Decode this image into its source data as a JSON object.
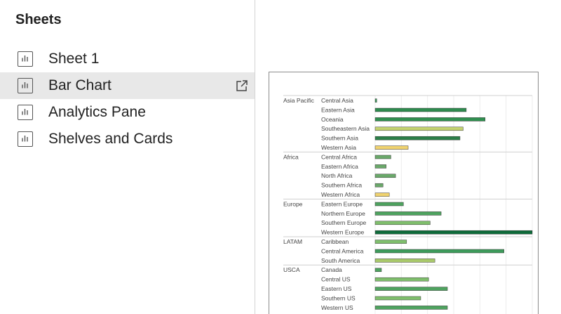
{
  "sidebar": {
    "title": "Sheets",
    "items": [
      {
        "label": "Sheet 1"
      },
      {
        "label": "Bar Chart"
      },
      {
        "label": "Analytics Pane"
      },
      {
        "label": "Shelves and Cards"
      }
    ]
  },
  "chart_data": {
    "type": "bar",
    "orientation": "horizontal",
    "grid": true,
    "colors": {
      "dark_green": "#0f6b3a",
      "green": "#3d9b5b",
      "light_green": "#7fbf6c",
      "yellow_green": "#c4d370",
      "yellow": "#f0d36f"
    },
    "groups": [
      {
        "name": "Asia Pacific",
        "rows": [
          {
            "label": "Central Asia",
            "value": 1,
            "color": "#3d9b5b"
          },
          {
            "label": "Eastern Asia",
            "value": 58,
            "color": "#2e8b4e"
          },
          {
            "label": "Oceania",
            "value": 70,
            "color": "#2f8f4f"
          },
          {
            "label": "Southeastern Asia",
            "value": 56,
            "color": "#c4d370"
          },
          {
            "label": "Southern Asia",
            "value": 54,
            "color": "#2b7f48"
          },
          {
            "label": "Western Asia",
            "value": 21,
            "color": "#f0d36f"
          }
        ]
      },
      {
        "name": "Africa",
        "rows": [
          {
            "label": "Central Africa",
            "value": 10,
            "color": "#6aa96a"
          },
          {
            "label": "Eastern Africa",
            "value": 7,
            "color": "#6aa96a"
          },
          {
            "label": "North Africa",
            "value": 13,
            "color": "#6aa96a"
          },
          {
            "label": "Southern Africa",
            "value": 5,
            "color": "#6aa96a"
          },
          {
            "label": "Western Africa",
            "value": 9,
            "color": "#f0d36f"
          }
        ]
      },
      {
        "name": "Europe",
        "rows": [
          {
            "label": "Eastern Europe",
            "value": 18,
            "color": "#4ea35f"
          },
          {
            "label": "Northern Europe",
            "value": 42,
            "color": "#4ea35f"
          },
          {
            "label": "Southern Europe",
            "value": 35,
            "color": "#7fbf6c"
          },
          {
            "label": "Western Europe",
            "value": 100,
            "color": "#0f6b3a"
          }
        ]
      },
      {
        "name": "LATAM",
        "rows": [
          {
            "label": "Caribbean",
            "value": 20,
            "color": "#7fbf6c"
          },
          {
            "label": "Central America",
            "value": 82,
            "color": "#3d9b5b"
          },
          {
            "label": "South America",
            "value": 38,
            "color": "#a9c96a"
          }
        ]
      },
      {
        "name": "USCA",
        "rows": [
          {
            "label": "Canada",
            "value": 4,
            "color": "#4ea35f"
          },
          {
            "label": "Central US",
            "value": 34,
            "color": "#7fbf6c"
          },
          {
            "label": "Eastern US",
            "value": 46,
            "color": "#4ea35f"
          },
          {
            "label": "Southern US",
            "value": 29,
            "color": "#7fbf6c"
          },
          {
            "label": "Western US",
            "value": 46,
            "color": "#4ea35f"
          }
        ]
      }
    ]
  }
}
